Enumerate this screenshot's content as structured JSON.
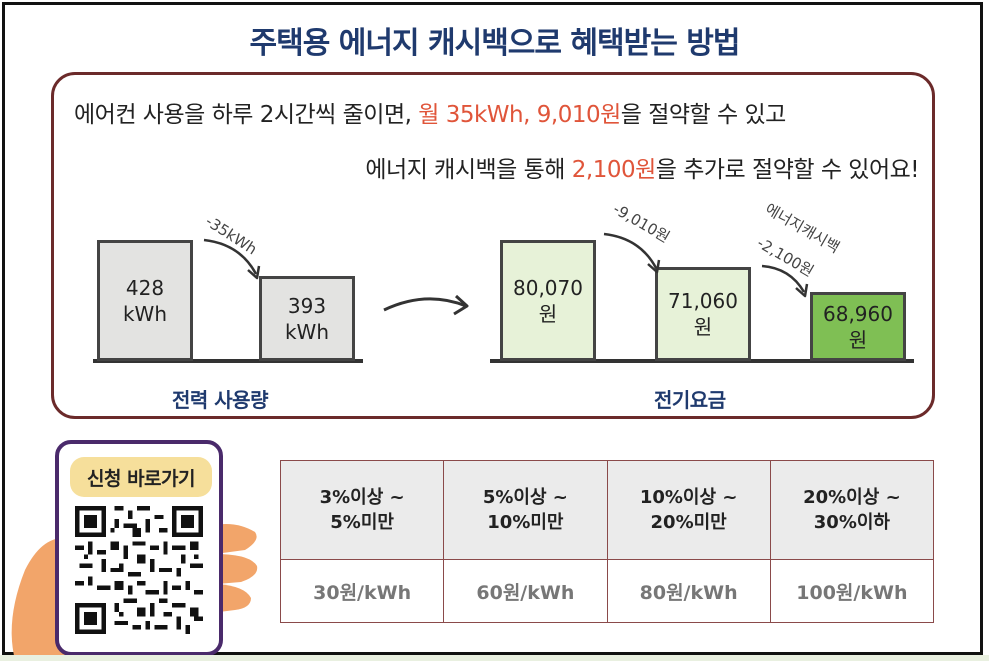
{
  "title": "주택용 에너지 캐시백으로 혜택받는 방법",
  "message": {
    "line1_pre": "에어컨 사용을 하루 2시간씩 줄이면, ",
    "line1_hl": "월 35kWh, 9,010원",
    "line1_post": "을 절약할 수 있고",
    "line2_pre": "에너지 캐시백을 통해 ",
    "line2_hl": "2,100원",
    "line2_post": "을 추가로 절약할 수 있어요!"
  },
  "usage_chart": {
    "title": "전력 사용량",
    "bar1": {
      "value": "428",
      "unit": "kWh"
    },
    "bar2": {
      "value": "393",
      "unit": "kWh"
    },
    "diff": "-35kWh"
  },
  "bill_chart": {
    "title": "전기요금",
    "bar1": {
      "value": "80,070",
      "unit": "원"
    },
    "bar2": {
      "value": "71,060",
      "unit": "원"
    },
    "bar3": {
      "value": "68,960",
      "unit": "원"
    },
    "diff1": "-9,010원",
    "diff2_label": "에너지캐시백",
    "diff2": "-2,100원"
  },
  "apply": {
    "label": "신청 바로가기"
  },
  "rates": {
    "headers": [
      {
        "a": "3%이상 ~",
        "b": "5%미만"
      },
      {
        "a": "5%이상 ~",
        "b": "10%미만"
      },
      {
        "a": "10%이상 ~",
        "b": "20%미만"
      },
      {
        "a": "20%이상 ~",
        "b": "30%이하"
      }
    ],
    "values": [
      "30원/kWh",
      "60원/kWh",
      "80원/kWh",
      "100원/kWh"
    ]
  },
  "colors": {
    "title": "#1f3a6e",
    "highlight": "#e0553a",
    "panel_border": "#6b2a2a",
    "bar_gray": "#e3e3e1",
    "bar_lightgreen": "#e7f2d8",
    "bar_green": "#7fbf54",
    "phone_border": "#4a2a6b",
    "apply_bg": "#f6df9b"
  }
}
